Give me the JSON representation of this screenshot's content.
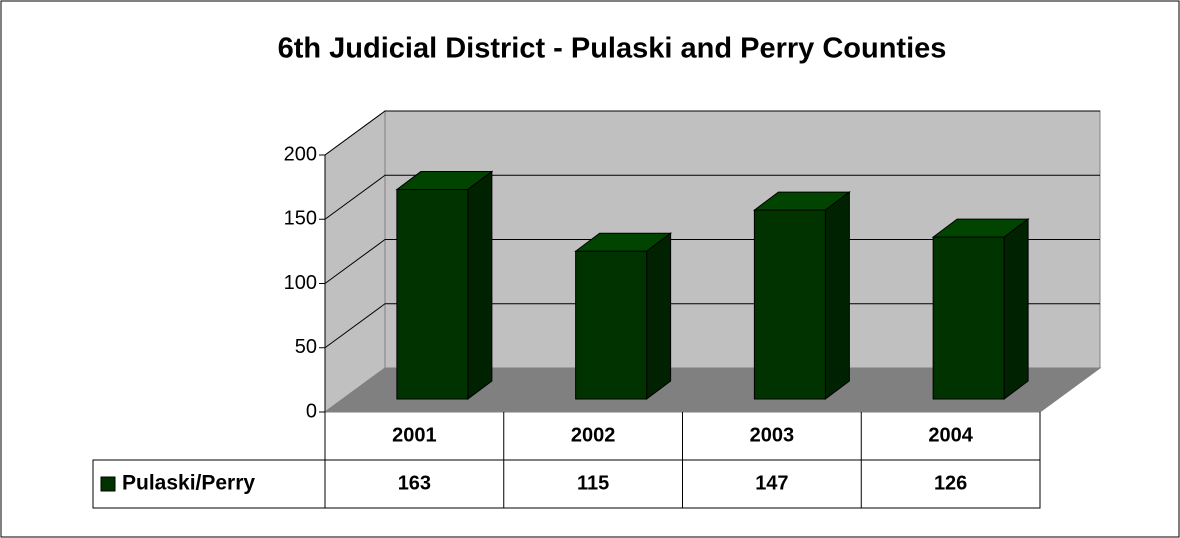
{
  "chart_data": {
    "type": "bar3d",
    "title": "6th Judicial District - Pulaski and Perry Counties",
    "categories": [
      "2001",
      "2002",
      "2003",
      "2004"
    ],
    "series": [
      {
        "name": "Pulaski/Perry",
        "color": "#003300",
        "values": [
          163,
          115,
          147,
          126
        ]
      }
    ],
    "ylim": [
      0,
      200
    ],
    "yticks": [
      0,
      50,
      100,
      150,
      200
    ],
    "grid": true,
    "legend": "table"
  }
}
